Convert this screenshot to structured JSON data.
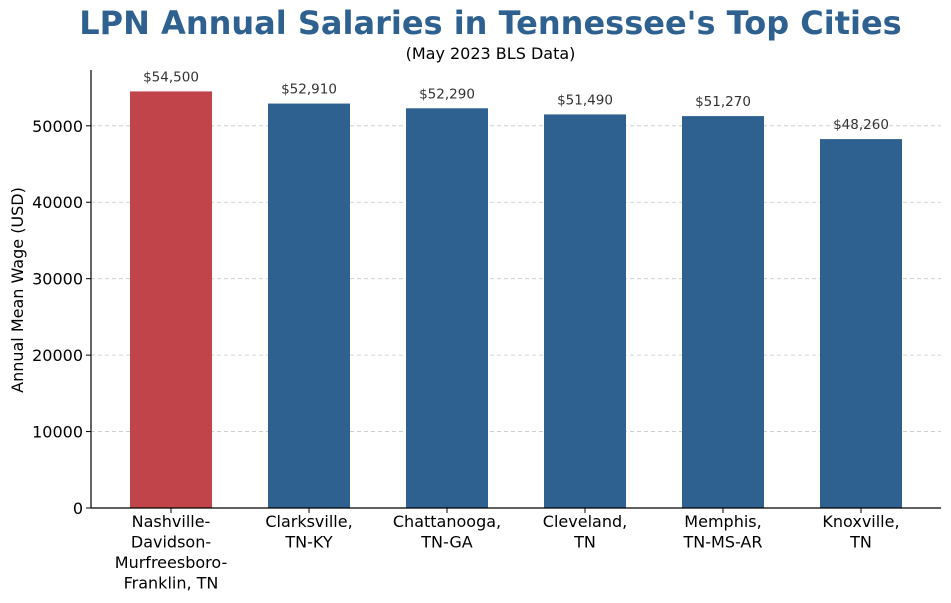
{
  "chart_data": {
    "type": "bar",
    "title": "LPN Annual Salaries in Tennessee's Top Cities",
    "subtitle": "(May 2023 BLS Data)",
    "xlabel": "",
    "ylabel": "Annual Mean Wage (USD)",
    "ylim": [
      0,
      57300
    ],
    "yticks": [
      0,
      10000,
      20000,
      30000,
      40000,
      50000
    ],
    "grid": "horizontal-dashed",
    "categories": [
      [
        "Nashville-",
        "Davidson-",
        "Murfreesboro-",
        "Franklin, TN"
      ],
      [
        "Clarksville,",
        "TN-KY"
      ],
      [
        "Chattanooga,",
        "TN-GA"
      ],
      [
        "Cleveland,",
        "TN"
      ],
      [
        "Memphis,",
        "TN-MS-AR"
      ],
      [
        "Knoxville,",
        "TN"
      ]
    ],
    "values": [
      54500,
      52910,
      52290,
      51490,
      51270,
      48260
    ],
    "data_labels": [
      "$54,500",
      "$52,910",
      "$52,290",
      "$51,490",
      "$51,270",
      "$48,260"
    ],
    "colors": [
      "#c0444a",
      "#2e6190",
      "#2e6190",
      "#2e6190",
      "#2e6190",
      "#2e6190"
    ]
  }
}
